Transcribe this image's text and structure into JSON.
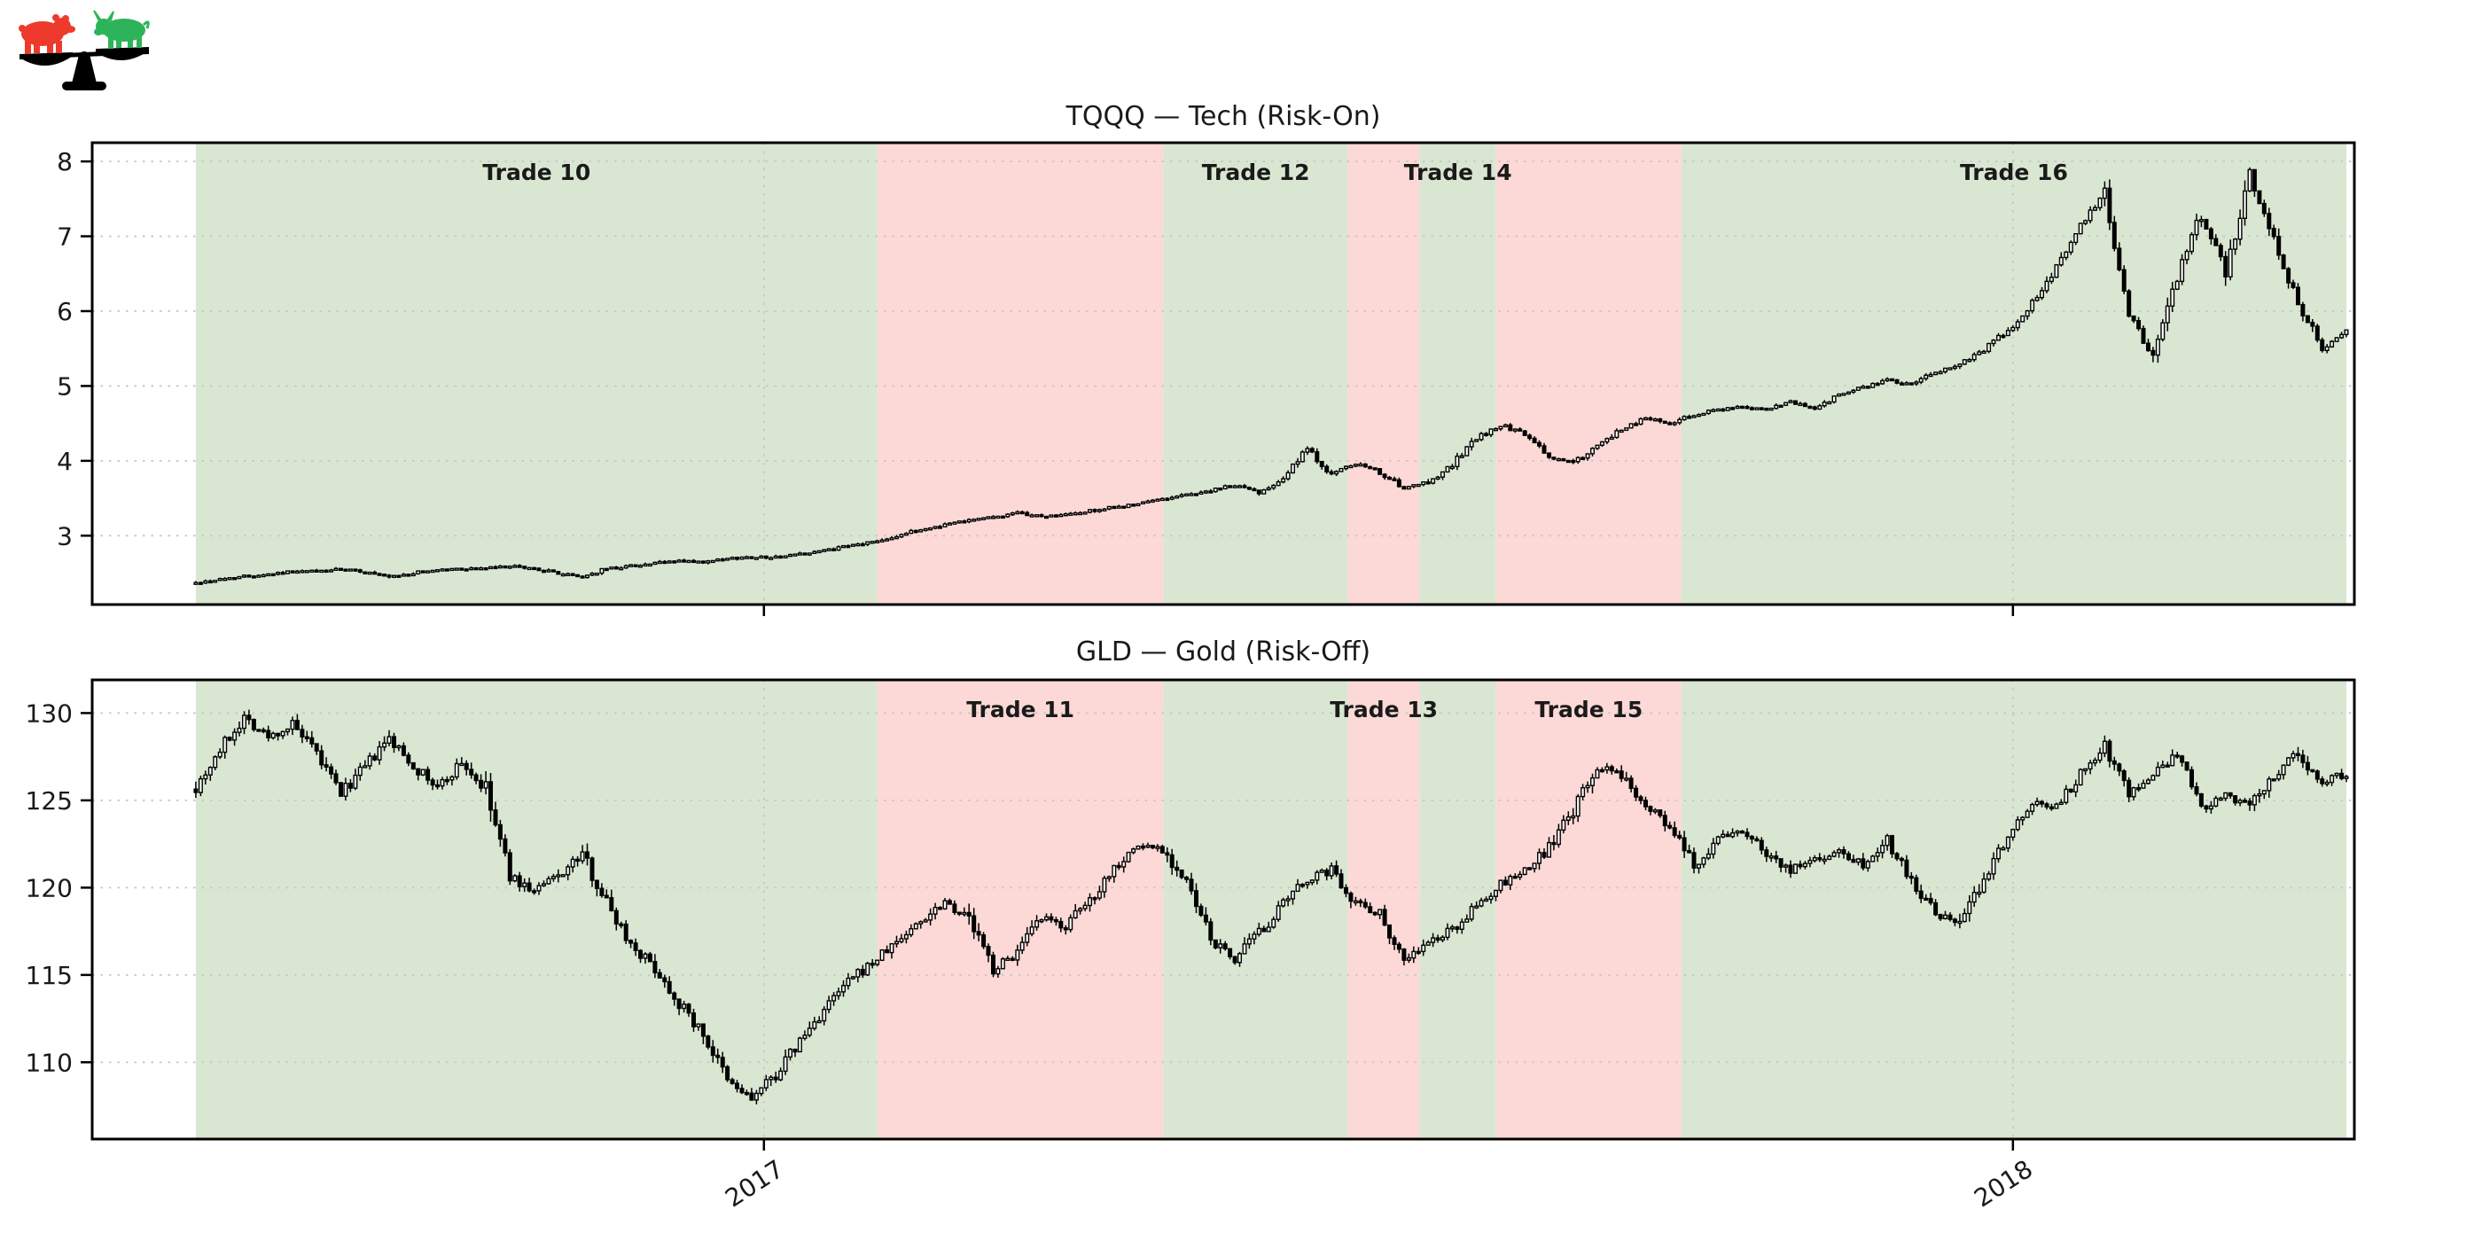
{
  "logo": {
    "bear_color": "#ee3a2c",
    "bull_color": "#2db45a",
    "scale_color": "#000000",
    "name": "bull-bear-balance-logo"
  },
  "colors": {
    "risk_on_band": "#d9e7d2",
    "risk_off_band": "#fcd9d6",
    "grid": "#c6c6c6",
    "candle": "#000000",
    "frame": "#000000",
    "label_text": "#1a1a1a"
  },
  "chart_data": {
    "type": "candlestick",
    "panels": [
      {
        "id": "tqqq",
        "title": "TQQQ — Tech (Risk-On)",
        "y_ticks": [
          3,
          4,
          5,
          6,
          7,
          8
        ],
        "ylim": [
          2.08,
          8.25
        ],
        "seed": 42,
        "noise_base": 0.03,
        "weekly_closes": [
          2.37,
          2.42,
          2.46,
          2.49,
          2.52,
          2.53,
          2.55,
          2.52,
          2.44,
          2.5,
          2.55,
          2.56,
          2.57,
          2.59,
          2.56,
          2.5,
          2.45,
          2.56,
          2.6,
          2.63,
          2.67,
          2.64,
          2.69,
          2.72,
          2.71,
          2.76,
          2.8,
          2.86,
          2.92,
          3.0,
          3.08,
          3.15,
          3.22,
          3.25,
          3.3,
          3.26,
          3.28,
          3.33,
          3.38,
          3.42,
          3.5,
          3.55,
          3.6,
          3.68,
          3.58,
          3.78,
          4.15,
          3.82,
          3.96,
          3.85,
          3.62,
          3.72,
          3.95,
          4.3,
          4.48,
          4.35,
          4.05,
          3.98,
          4.18,
          4.42,
          4.58,
          4.5,
          4.62,
          4.68,
          4.72,
          4.68,
          4.78,
          4.7,
          4.88,
          4.98,
          5.08,
          5.02,
          5.18,
          5.3,
          5.48,
          5.75,
          6.1,
          6.6,
          7.15,
          7.55,
          5.95,
          5.4,
          6.45,
          7.3,
          6.5,
          7.85,
          7.0,
          6.1,
          5.5,
          5.72
        ]
      },
      {
        "id": "gld",
        "title": "GLD — Gold (Risk-Off)",
        "y_ticks": [
          110,
          115,
          120,
          125,
          130
        ],
        "ylim": [
          105.6,
          131.9
        ],
        "seed": 7,
        "noise_base": 0.38,
        "weekly_closes": [
          125.8,
          127.9,
          129.8,
          128.6,
          129.3,
          127.6,
          125.4,
          126.9,
          128.5,
          127.0,
          125.7,
          127.2,
          125.5,
          120.6,
          119.8,
          120.7,
          121.9,
          119.2,
          116.8,
          115.4,
          113.4,
          111.6,
          108.9,
          107.9,
          109.3,
          111.2,
          113.0,
          114.6,
          115.7,
          116.9,
          118.1,
          119.3,
          118.2,
          115.3,
          116.3,
          118.2,
          117.8,
          119.3,
          121.2,
          122.4,
          122.3,
          120.2,
          117.0,
          115.9,
          117.4,
          119.0,
          120.5,
          121.0,
          119.2,
          118.5,
          115.9,
          116.8,
          117.6,
          118.9,
          120.2,
          120.9,
          122.3,
          124.4,
          126.9,
          126.4,
          124.9,
          123.4,
          121.2,
          122.8,
          123.3,
          122.0,
          121.0,
          121.6,
          122.1,
          121.4,
          122.8,
          120.4,
          118.4,
          118.0,
          120.5,
          123.2,
          124.8,
          124.7,
          126.5,
          128.2,
          125.4,
          126.4,
          127.6,
          124.5,
          125.2,
          124.6,
          126.4,
          127.8,
          126.0,
          126.6
        ]
      }
    ],
    "trades": [
      {
        "label": "Trade 10",
        "kind": "risk_on",
        "from_week": 0.0,
        "to_week": 28.2,
        "label_panel": "tqqq"
      },
      {
        "label": "Trade 11",
        "kind": "risk_off",
        "from_week": 28.2,
        "to_week": 40.05,
        "label_panel": "gld"
      },
      {
        "label": "Trade 12",
        "kind": "risk_on",
        "from_week": 40.05,
        "to_week": 47.68,
        "label_panel": "tqqq"
      },
      {
        "label": "Trade 13",
        "kind": "risk_off",
        "from_week": 47.68,
        "to_week": 50.65,
        "label_panel": "gld"
      },
      {
        "label": "Trade 14",
        "kind": "risk_on",
        "from_week": 50.65,
        "to_week": 53.81,
        "label_panel": "tqqq"
      },
      {
        "label": "Trade 15",
        "kind": "risk_off",
        "from_week": 53.81,
        "to_week": 61.48,
        "label_panel": "gld"
      },
      {
        "label": "Trade 16",
        "kind": "risk_on",
        "from_week": 61.48,
        "to_week": 89.0,
        "label_panel": "tqqq"
      }
    ],
    "x_axis": {
      "min_week": -4.29,
      "max_week": 89.33,
      "ticks": [
        {
          "label": "2017",
          "week": 23.51
        },
        {
          "label": "2018",
          "week": 75.2
        }
      ]
    }
  }
}
